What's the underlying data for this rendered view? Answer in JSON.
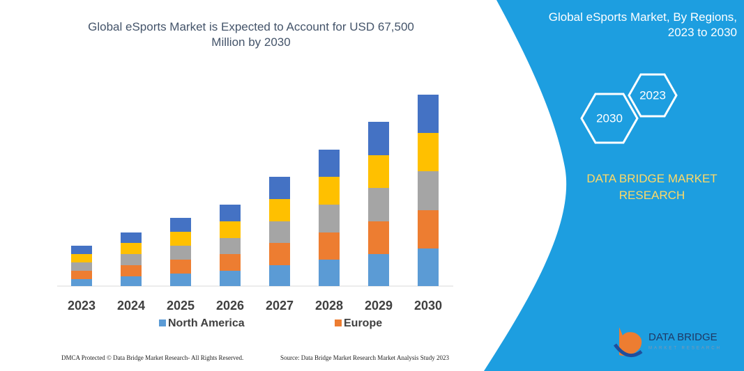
{
  "chart_data": {
    "type": "stacked_bar",
    "title": "Global eSports Market is Expected to Account for USD 67,500 Million by 2030",
    "categories": [
      "2023",
      "2024",
      "2025",
      "2026",
      "2027",
      "2028",
      "2029",
      "2030"
    ],
    "series": [
      {
        "name": "North America",
        "color": "#5b9bd5",
        "values": [
          10,
          14,
          18,
          22,
          30,
          38,
          46,
          54
        ]
      },
      {
        "name": "Europe",
        "color": "#ed7d31",
        "values": [
          12,
          16,
          20,
          24,
          32,
          39,
          47,
          55
        ]
      },
      {
        "color": "#a5a5a5",
        "values": [
          12,
          16,
          20,
          23,
          31,
          40,
          48,
          56
        ]
      },
      {
        "color": "#ffc000",
        "values": [
          12,
          16,
          20,
          24,
          32,
          40,
          47,
          55
        ]
      },
      {
        "color": "#4472c4",
        "values": [
          12,
          15,
          20,
          24,
          32,
          39,
          48,
          55
        ]
      }
    ],
    "ylim": [
      0,
      275
    ]
  },
  "panel": {
    "title": "Global eSports Market, By Regions, 2023 to 2030",
    "badge_start": "2023",
    "badge_end": "2030",
    "brand": "DATA BRIDGE MARKET RESEARCH"
  },
  "logo": {
    "name": "DATA BRIDGE",
    "tagline": "MARKET RESEARCH"
  },
  "footer": {
    "left": "DMCA Protected © Data Bridge Market Research- All Rights Reserved.",
    "right": "Source: Data Bridge Market Research Market Analysis Study 2023"
  }
}
